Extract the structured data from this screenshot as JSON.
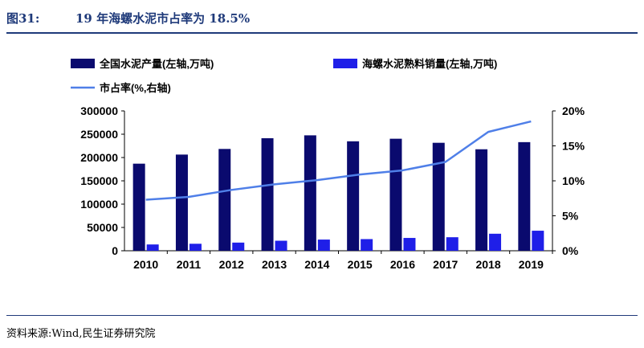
{
  "header": {
    "figure_label": "图31:",
    "figure_title": "19 年海螺水泥市占率为 18.5%"
  },
  "footer": {
    "source": "资料来源:Wind,民生证券研究院"
  },
  "colors": {
    "national_bar": "#0a0a6e",
    "conch_bar": "#1f1fe8",
    "share_line": "#4f7fe8",
    "rule": "#1f3a7a"
  },
  "chart_data": {
    "type": "bar",
    "categories": [
      "2010",
      "2011",
      "2012",
      "2013",
      "2014",
      "2015",
      "2016",
      "2017",
      "2018",
      "2019"
    ],
    "series": [
      {
        "name": "全国水泥产量(左轴,万吨)",
        "type": "bar",
        "axis": "left",
        "values": [
          186800,
          206300,
          218400,
          241400,
          247600,
          234800,
          240300,
          231600,
          217700,
          233000
        ]
      },
      {
        "name": "海螺水泥熟料销量(左轴,万吨)",
        "type": "bar",
        "axis": "left",
        "values": [
          13500,
          15000,
          17500,
          21500,
          24000,
          25000,
          27500,
          29000,
          36500,
          43000
        ]
      },
      {
        "name": "市占率(%,右轴)",
        "type": "line",
        "axis": "right",
        "values": [
          7.3,
          7.7,
          8.7,
          9.5,
          10.1,
          10.9,
          11.5,
          12.7,
          17.0,
          18.5
        ]
      }
    ],
    "y_left": {
      "ylim": [
        0,
        300000
      ],
      "ticks": [
        "0",
        "50000",
        "100000",
        "150000",
        "200000",
        "250000",
        "300000"
      ]
    },
    "y_right": {
      "ylim": [
        0,
        20
      ],
      "ticks": [
        "0%",
        "5%",
        "10%",
        "15%",
        "20%"
      ]
    },
    "legend_position": "top",
    "grid": false
  }
}
